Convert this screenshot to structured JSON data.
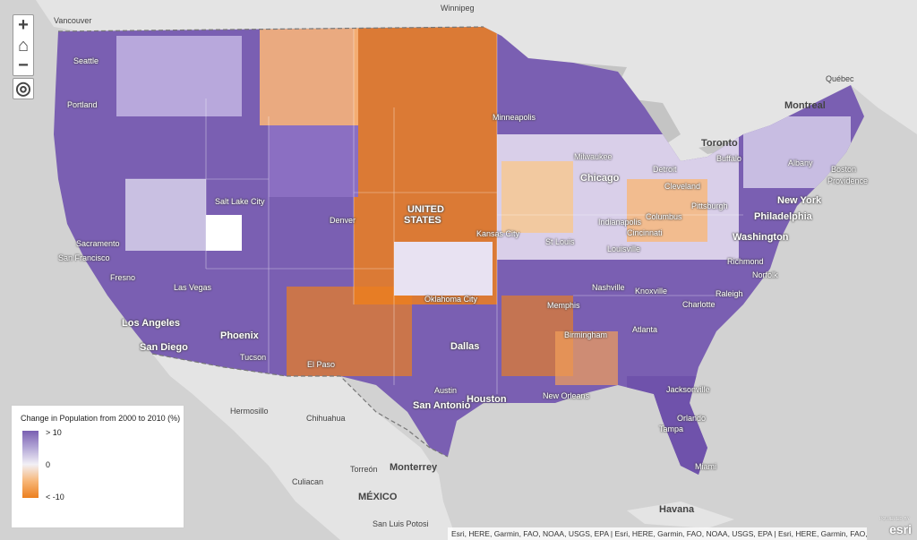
{
  "controls": {
    "zoom_in": "+",
    "home": "⌂",
    "zoom_out": "−",
    "locate": "◎"
  },
  "legend": {
    "title": "Change in Population from 2000 to 2010 (%)",
    "max_label": "> 10",
    "mid_label": "0",
    "min_label": "< -10",
    "colors": {
      "high": "#7a5fb2",
      "mid": "#f2f0f6",
      "low": "#ec7f1f"
    }
  },
  "labels": {
    "vancouver": "Vancouver",
    "winnipeg": "Winnipeg",
    "seattle": "Seattle",
    "portland": "Portland",
    "minneapolis": "Minneapolis",
    "quebec": "Québec",
    "montreal": "Montreal",
    "toronto": "Toronto",
    "milwaukee": "Milwaukee",
    "detroit": "Detroit",
    "buffalo": "Buffalo",
    "albany": "Albany",
    "boston": "Boston",
    "providence": "Providence",
    "chicago": "Chicago",
    "cleveland": "Cleveland",
    "pittsburgh": "Pittsburgh",
    "new_york": "New York",
    "philadelphia": "Philadelphia",
    "salt_lake_city": "Salt Lake City",
    "united": "UNITED",
    "states": "STATES",
    "denver": "Denver",
    "columbus": "Columbus",
    "indianapolis": "Indianapolis",
    "cincinnati": "Cincinnati",
    "washington": "Washington",
    "sacramento": "Sacramento",
    "kansas_city": "Kansas City",
    "st_louis": "St Louis",
    "louisville": "Louisville",
    "san_francisco": "San Francisco",
    "richmond": "Richmond",
    "las_vegas": "Las Vegas",
    "fresno": "Fresno",
    "norfolk": "Norfolk",
    "oklahoma_city": "Oklahoma City",
    "nashville": "Nashville",
    "knoxville": "Knoxville",
    "raleigh": "Raleigh",
    "charlotte": "Charlotte",
    "los_angeles": "Los Angeles",
    "memphis": "Memphis",
    "phoenix": "Phoenix",
    "atlanta": "Atlanta",
    "birmingham": "Birmingham",
    "san_diego": "San Diego",
    "dallas": "Dallas",
    "tucson": "Tucson",
    "el_paso": "El Paso",
    "jacksonville": "Jacksonville",
    "austin": "Austin",
    "houston": "Houston",
    "new_orleans": "New Orleans",
    "san_antonio": "San Antonio",
    "hermosillo": "Hermosillo",
    "chihuahua": "Chihuahua",
    "orlando": "Orlando",
    "tampa": "Tampa",
    "miami": "Miami",
    "torreon": "Torreón",
    "monterrey": "Monterrey",
    "culiacan": "Culiacan",
    "mexico": "MÉXICO",
    "havana": "Havana",
    "san_luis_potosi": "San Luis Potosi"
  },
  "attribution": "Esri, HERE, Garmin, FAO, NOAA, USGS, EPA | Esri, HERE, Garmin, FAO, NOAA, USGS, EPA | Esri, HERE, Garmin, FAO, NOAA, USGS, EPA | Esri, HERE, Garmin, FAO, NOA...",
  "logo": {
    "powered_by": "POWERED BY",
    "brand": "esri"
  }
}
